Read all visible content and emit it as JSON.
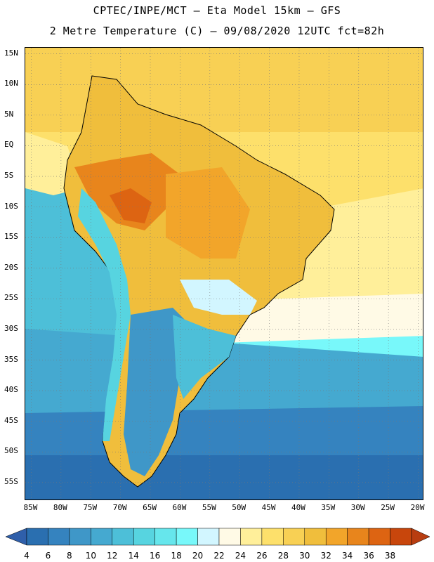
{
  "header": {
    "line1": "CPTEC/INPE/MCT –  Eta Model 15km – GFS",
    "line2": "2 Metre Temperature (C) – 09/08/2020 12UTC fct=82h"
  },
  "map": {
    "region": "South America",
    "lon_range": [
      -86,
      -19
    ],
    "lat_range": [
      -58,
      16
    ],
    "lat_labels": [
      "15N",
      "10N",
      "5N",
      "EQ",
      "5S",
      "10S",
      "15S",
      "20S",
      "25S",
      "30S",
      "35S",
      "40S",
      "45S",
      "50S",
      "55S"
    ],
    "lon_labels": [
      "85W",
      "80W",
      "75W",
      "70W",
      "65W",
      "60W",
      "55W",
      "50W",
      "45W",
      "40W",
      "35W",
      "30W",
      "25W",
      "20W"
    ],
    "grid": true
  },
  "colorbar": {
    "labels": [
      "4",
      "6",
      "8",
      "10",
      "12",
      "14",
      "16",
      "18",
      "20",
      "22",
      "24",
      "26",
      "28",
      "30",
      "32",
      "34",
      "36",
      "38"
    ],
    "colors": [
      "#2a6fb0",
      "#3583bf",
      "#3f97c8",
      "#45a9d0",
      "#4dbfd8",
      "#57d4e0",
      "#66e6ec",
      "#78f8fa",
      "#d2f6ff",
      "#fffae6",
      "#ffef9a",
      "#fde06b",
      "#f8d054",
      "#f0be3c",
      "#f2a52a",
      "#e8851c",
      "#dd6412",
      "#c8460c"
    ],
    "under_color": "#2f5faa",
    "over_color": "#b83d10"
  }
}
